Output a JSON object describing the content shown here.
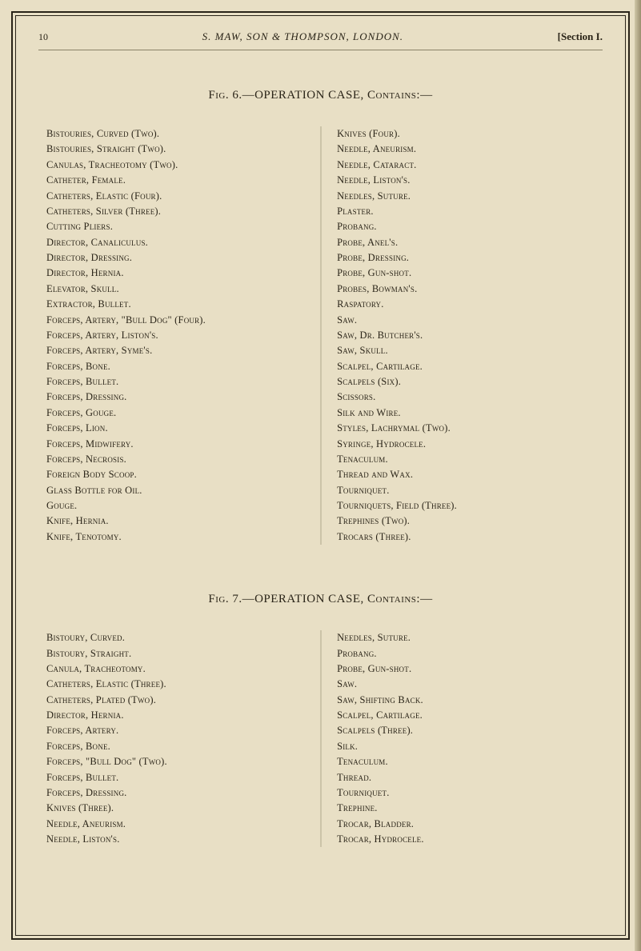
{
  "page": {
    "number": "10",
    "header_title": "S. MAW, SON & THOMPSON, LONDON.",
    "section": "[Section I."
  },
  "figures": [
    {
      "title": "Fig. 6.—OPERATION CASE, Contains:—",
      "left_column": [
        "Bistouries, Curved (Two).",
        "Bistouries, Straight (Two).",
        "Canulas, Tracheotomy (Two).",
        "Catheter, Female.",
        "Catheters, Elastic (Four).",
        "Catheters, Silver (Three).",
        "Cutting Pliers.",
        "Director, Canaliculus.",
        "Director, Dressing.",
        "Director, Hernia.",
        "Elevator, Skull.",
        "Extractor, Bullet.",
        "Forceps, Artery, \"Bull Dog\" (Four).",
        "Forceps, Artery, Liston's.",
        "Forceps, Artery, Syme's.",
        "Forceps, Bone.",
        "Forceps, Bullet.",
        "Forceps, Dressing.",
        "Forceps, Gouge.",
        "Forceps, Lion.",
        "Forceps, Midwifery.",
        "Forceps, Necrosis.",
        "Foreign Body Scoop.",
        "Glass Bottle for Oil.",
        "Gouge.",
        "Knife, Hernia.",
        "Knife, Tenotomy."
      ],
      "right_column": [
        "Knives (Four).",
        "Needle, Aneurism.",
        "Needle, Cataract.",
        "Needle, Liston's.",
        "Needles, Suture.",
        "Plaster.",
        "Probang.",
        "Probe, Anel's.",
        "Probe, Dressing.",
        "Probe, Gun-shot.",
        "Probes, Bowman's.",
        "Raspatory.",
        "Saw.",
        "Saw, Dr. Butcher's.",
        "Saw, Skull.",
        "Scalpel, Cartilage.",
        "Scalpels (Six).",
        "Scissors.",
        "Silk and Wire.",
        "Styles, Lachrymal (Two).",
        "Syringe, Hydrocele.",
        "Tenaculum.",
        "Thread and Wax.",
        "Tourniquet.",
        "Tourniquets, Field (Three).",
        "Trephines (Two).",
        "Trocars (Three)."
      ]
    },
    {
      "title": "Fig. 7.—OPERATION CASE, Contains:—",
      "left_column": [
        "Bistoury, Curved.",
        "Bistoury, Straight.",
        "Canula, Tracheotomy.",
        "Catheters, Elastic (Three).",
        "Catheters, Plated (Two).",
        "Director, Hernia.",
        "Forceps, Artery.",
        "Forceps, Bone.",
        "Forceps, \"Bull Dog\" (Two).",
        "Forceps, Bullet.",
        "Forceps, Dressing.",
        "Knives (Three).",
        "Needle, Aneurism.",
        "Needle, Liston's."
      ],
      "right_column": [
        "Needles, Suture.",
        "Probang.",
        "Probe, Gun-shot.",
        "Saw.",
        "Saw, Shifting Back.",
        "Scalpel, Cartilage.",
        "Scalpels (Three).",
        "Silk.",
        "Tenaculum.",
        "Thread.",
        "Tourniquet.",
        "Trephine.",
        "Trocar, Bladder.",
        "Trocar, Hydrocele."
      ]
    }
  ],
  "colors": {
    "background": "#e8dfc5",
    "text": "#2a2418",
    "border": "#2a2418",
    "divider": "#cbc3a8"
  }
}
